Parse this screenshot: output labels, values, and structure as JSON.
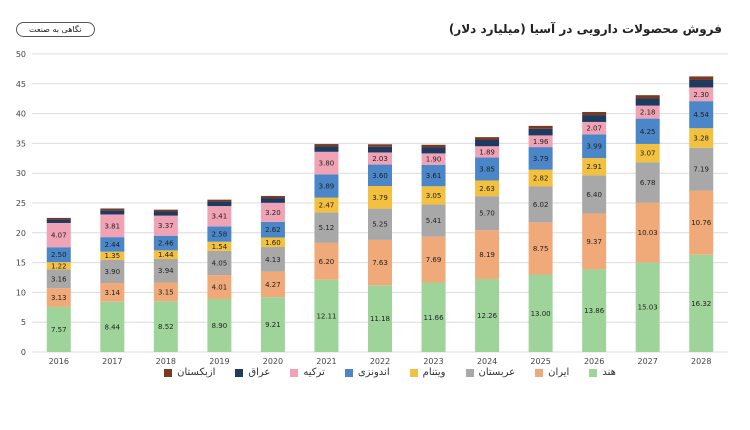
{
  "badge": "نگاهی به صنعت",
  "chart_data": {
    "type": "bar",
    "stacked": true,
    "title": "فروش محصولات دارویی در آسیا (میلیارد دلار)",
    "categories": [
      "2016",
      "2017",
      "2018",
      "2019",
      "2020",
      "2021",
      "2022",
      "2023",
      "2024",
      "2025",
      "2026",
      "2027",
      "2028"
    ],
    "ylim": [
      0,
      50
    ],
    "yticks": [
      0,
      5,
      10,
      15,
      20,
      25,
      30,
      35,
      40,
      45,
      50
    ],
    "grid": true,
    "legend_position": "bottom",
    "series": [
      {
        "name": "هند",
        "color": "#9ed49a",
        "labeled": true,
        "values": [
          7.57,
          8.44,
          8.52,
          8.9,
          9.21,
          12.11,
          11.18,
          11.66,
          12.26,
          13.0,
          13.86,
          15.03,
          16.32
        ]
      },
      {
        "name": "ایران",
        "color": "#f0a978",
        "labeled": true,
        "values": [
          3.13,
          3.14,
          3.15,
          4.01,
          4.27,
          6.2,
          7.63,
          7.69,
          8.19,
          8.75,
          9.37,
          10.03,
          10.76
        ]
      },
      {
        "name": "عربستان",
        "color": "#a8a8a8",
        "labeled": true,
        "values": [
          3.16,
          3.9,
          3.94,
          4.05,
          4.13,
          5.12,
          5.25,
          5.41,
          5.7,
          6.02,
          6.4,
          6.78,
          7.19
        ]
      },
      {
        "name": "ویتنام",
        "color": "#f4c040",
        "labeled": true,
        "values": [
          1.22,
          1.35,
          1.44,
          1.54,
          1.6,
          2.47,
          3.79,
          3.05,
          2.63,
          2.82,
          2.91,
          3.07,
          3.28
        ]
      },
      {
        "name": "اندونزی",
        "color": "#4a86c8",
        "labeled": true,
        "values": [
          2.5,
          2.44,
          2.46,
          2.58,
          2.62,
          3.89,
          3.6,
          3.61,
          3.85,
          3.79,
          3.99,
          4.25,
          4.54
        ]
      },
      {
        "name": "ترکیه",
        "color": "#f0a3b4",
        "labeled": true,
        "values": [
          4.07,
          3.81,
          3.37,
          3.41,
          3.2,
          3.8,
          2.03,
          1.9,
          1.89,
          1.96,
          2.07,
          2.18,
          2.3
        ]
      },
      {
        "name": "عراق",
        "color": "#1f3a60",
        "labeled": false,
        "values": [
          0.6,
          0.7,
          0.7,
          0.75,
          0.8,
          0.9,
          0.95,
          1.0,
          1.05,
          1.1,
          1.15,
          1.2,
          1.25
        ]
      },
      {
        "name": "ازبکستان",
        "color": "#7a3a22",
        "labeled": false,
        "values": [
          0.25,
          0.3,
          0.3,
          0.32,
          0.35,
          0.4,
          0.42,
          0.45,
          0.48,
          0.5,
          0.52,
          0.55,
          0.6
        ]
      }
    ]
  }
}
